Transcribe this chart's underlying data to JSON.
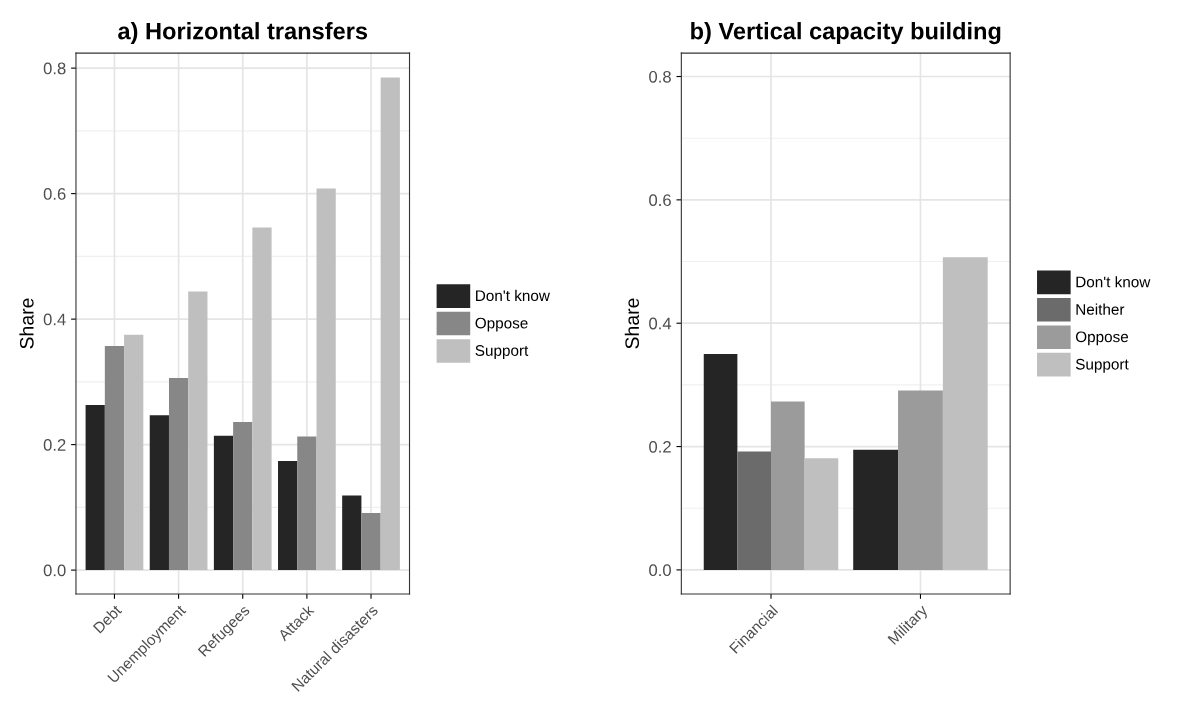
{
  "chart_data": [
    {
      "type": "bar",
      "title": "a) Horizontal transfers",
      "ylabel": "Share",
      "categories": [
        "Debt",
        "Unemployment",
        "Refugees",
        "Attack",
        "Natural disasters"
      ],
      "series": [
        {
          "name": "Don't know",
          "color": "#252525",
          "values": [
            0.263,
            0.247,
            0.214,
            0.174,
            0.119
          ]
        },
        {
          "name": "Oppose",
          "color": "#878787",
          "values": [
            0.357,
            0.306,
            0.236,
            0.213,
            0.091
          ]
        },
        {
          "name": "Support",
          "color": "#bfbfbf",
          "values": [
            0.375,
            0.444,
            0.546,
            0.608,
            0.785
          ]
        }
      ],
      "ylim": [
        -0.038,
        0.824
      ],
      "yticks": [
        {
          "value": 0,
          "label": "0.0"
        },
        0.2,
        0.4,
        0.6,
        0.8
      ],
      "grid": true,
      "legend": "right"
    },
    {
      "type": "bar",
      "title": "b) Vertical capacity building",
      "ylabel": "Share",
      "categories": [
        "Financial",
        "Military"
      ],
      "series": [
        {
          "name": "Don't know",
          "color": "#252525",
          "values": [
            0.35,
            0.195
          ]
        },
        {
          "name": "Neither",
          "color": "#6b6b6b",
          "values": [
            0.192,
            null
          ]
        },
        {
          "name": "Oppose",
          "color": "#9b9b9b",
          "values": [
            0.273,
            0.291
          ]
        },
        {
          "name": "Support",
          "color": "#bfbfbf",
          "values": [
            0.181,
            0.507
          ]
        }
      ],
      "ylim": [
        -0.039,
        0.838
      ],
      "yticks": [
        {
          "value": 0,
          "label": "0.0"
        },
        0.2,
        0.4,
        0.6,
        0.8
      ],
      "grid": true,
      "legend": "right"
    }
  ]
}
